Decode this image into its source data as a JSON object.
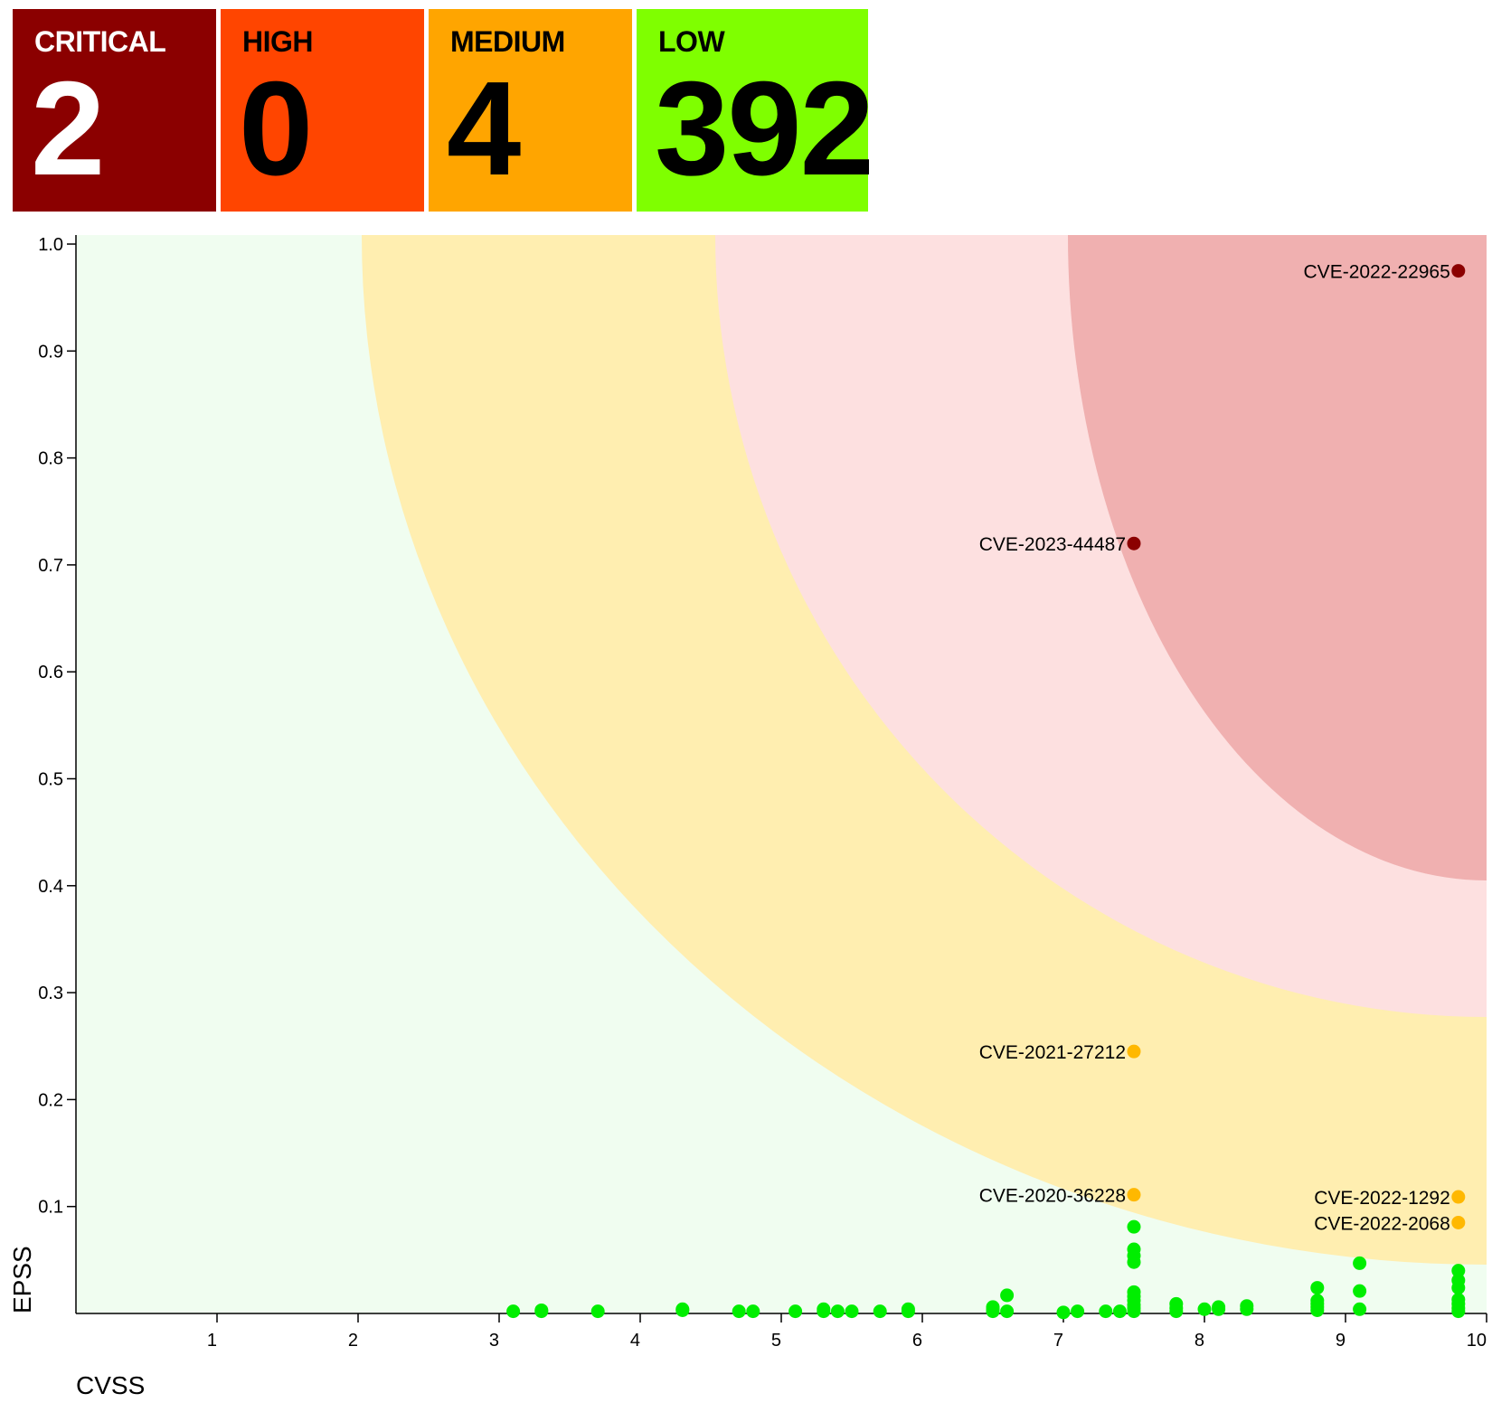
{
  "summary": [
    {
      "id": "critical",
      "label": "CRITICAL",
      "count": "2",
      "bg": "#8b0000",
      "fg": "#ffffff"
    },
    {
      "id": "high",
      "label": "HIGH",
      "count": "0",
      "bg": "#ff4500",
      "fg": "#000000"
    },
    {
      "id": "medium",
      "label": "MEDIUM",
      "count": "4",
      "bg": "#ffa500",
      "fg": "#000000"
    },
    {
      "id": "low",
      "label": "LOW",
      "count": "392",
      "bg": "#7fff00",
      "fg": "#000000"
    }
  ],
  "chart_data": {
    "type": "scatter",
    "xlabel": "CVSS",
    "ylabel": "EPSS",
    "xlim": [
      0,
      10
    ],
    "ylim": [
      0,
      1.0
    ],
    "xticks": [
      1,
      2,
      3,
      4,
      5,
      6,
      7,
      8,
      9,
      10
    ],
    "yticks": [
      0.1,
      0.2,
      0.3,
      0.4,
      0.5,
      0.6,
      0.7,
      0.8,
      0.9,
      1.0
    ],
    "grid": false,
    "zones": [
      {
        "name": "low",
        "color": "#f0fdf0"
      },
      {
        "name": "medium",
        "color": "#ffeeb0"
      },
      {
        "name": "high",
        "color": "#fde0e0"
      },
      {
        "name": "critical",
        "color": "#f0b0b0"
      }
    ],
    "labeled_points": [
      {
        "label": "CVE-2022-22965",
        "x": 9.8,
        "y": 0.975,
        "severity": "critical",
        "color": "#8b0000"
      },
      {
        "label": "CVE-2023-44487",
        "x": 7.5,
        "y": 0.72,
        "severity": "critical",
        "color": "#8b0000"
      },
      {
        "label": "CVE-2021-27212",
        "x": 7.5,
        "y": 0.245,
        "severity": "medium",
        "color": "#ffb800"
      },
      {
        "label": "CVE-2020-36228",
        "x": 7.5,
        "y": 0.111,
        "severity": "medium",
        "color": "#ffb800"
      },
      {
        "label": "CVE-2022-1292",
        "x": 9.8,
        "y": 0.109,
        "severity": "medium",
        "color": "#ffb800"
      },
      {
        "label": "CVE-2022-2068",
        "x": 9.8,
        "y": 0.085,
        "severity": "medium",
        "color": "#ffb800"
      }
    ],
    "low_points": {
      "color": "#00ee00",
      "points": [
        [
          3.1,
          0.002
        ],
        [
          3.3,
          0.002
        ],
        [
          3.3,
          0.003
        ],
        [
          3.7,
          0.002
        ],
        [
          4.3,
          0.003
        ],
        [
          4.3,
          0.004
        ],
        [
          4.7,
          0.002
        ],
        [
          4.8,
          0.002
        ],
        [
          5.1,
          0.002
        ],
        [
          5.3,
          0.002
        ],
        [
          5.3,
          0.004
        ],
        [
          5.4,
          0.002
        ],
        [
          5.5,
          0.002
        ],
        [
          5.7,
          0.002
        ],
        [
          5.9,
          0.002
        ],
        [
          5.9,
          0.004
        ],
        [
          6.5,
          0.002
        ],
        [
          6.5,
          0.004
        ],
        [
          6.5,
          0.006
        ],
        [
          6.6,
          0.002
        ],
        [
          6.6,
          0.017
        ],
        [
          7.0,
          0.001
        ],
        [
          7.1,
          0.002
        ],
        [
          7.3,
          0.002
        ],
        [
          7.4,
          0.002
        ],
        [
          7.5,
          0.002
        ],
        [
          7.5,
          0.005
        ],
        [
          7.5,
          0.008
        ],
        [
          7.5,
          0.012
        ],
        [
          7.5,
          0.016
        ],
        [
          7.5,
          0.02
        ],
        [
          7.5,
          0.048
        ],
        [
          7.5,
          0.054
        ],
        [
          7.5,
          0.06
        ],
        [
          7.5,
          0.081
        ],
        [
          7.8,
          0.002
        ],
        [
          7.8,
          0.005
        ],
        [
          7.8,
          0.009
        ],
        [
          8.0,
          0.004
        ],
        [
          8.1,
          0.004
        ],
        [
          8.1,
          0.006
        ],
        [
          8.3,
          0.004
        ],
        [
          8.3,
          0.007
        ],
        [
          8.8,
          0.003
        ],
        [
          8.8,
          0.006
        ],
        [
          8.8,
          0.009
        ],
        [
          8.8,
          0.012
        ],
        [
          8.8,
          0.024
        ],
        [
          9.1,
          0.004
        ],
        [
          9.1,
          0.021
        ],
        [
          9.1,
          0.047
        ],
        [
          9.8,
          0.002
        ],
        [
          9.8,
          0.005
        ],
        [
          9.8,
          0.009
        ],
        [
          9.8,
          0.013
        ],
        [
          9.8,
          0.024
        ],
        [
          9.8,
          0.031
        ],
        [
          9.8,
          0.04
        ]
      ]
    }
  }
}
